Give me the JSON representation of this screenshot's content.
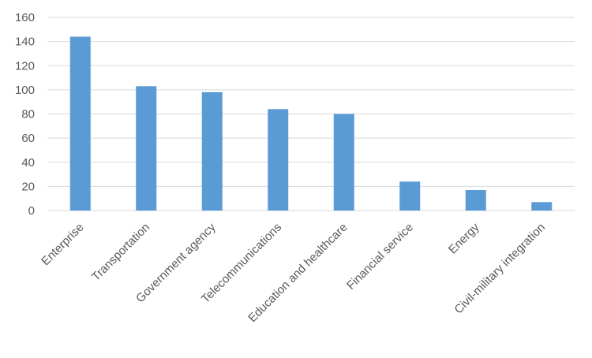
{
  "chart_data": {
    "type": "bar",
    "categories": [
      "Enterprise",
      "Transportation",
      "Government agency",
      "Telecommunications",
      "Education and healthcare",
      "Financial service",
      "Energy",
      "Civil-military integration"
    ],
    "values": [
      144,
      103,
      98,
      84,
      80,
      24,
      17,
      7
    ],
    "ylim": [
      0,
      160
    ],
    "yticks": [
      0,
      20,
      40,
      60,
      80,
      100,
      120,
      140,
      160
    ],
    "grid": true,
    "legend": "none",
    "colors": {
      "bar": "#5b9bd5",
      "grid": "#d9d9d9",
      "text": "#595959",
      "background": "#ffffff"
    }
  }
}
